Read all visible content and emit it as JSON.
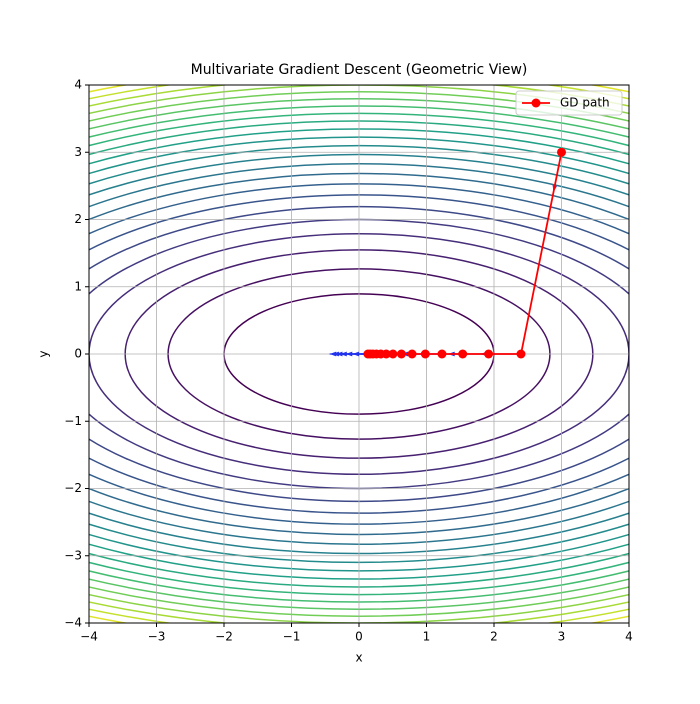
{
  "chart_data": {
    "type": "contour-path",
    "title": "Multivariate Gradient Descent (Geometric View)",
    "x_label": "x",
    "y_label": "y",
    "xlim": [
      -4,
      4
    ],
    "ylim": [
      -4,
      4
    ],
    "xticks": [
      {
        "value": -4,
        "label": "−4"
      },
      {
        "value": -3,
        "label": "−3"
      },
      {
        "value": -2,
        "label": "−2"
      },
      {
        "value": -1,
        "label": "−1"
      },
      0,
      1,
      2,
      3,
      4
    ],
    "yticks": [
      {
        "value": -4,
        "label": "−4"
      },
      {
        "value": -3,
        "label": "−3"
      },
      {
        "value": -2,
        "label": "−2"
      },
      {
        "value": -1,
        "label": "−1"
      },
      0,
      1,
      2,
      3,
      4
    ],
    "grid": true,
    "legend": "upper right",
    "levels": [
      4,
      8,
      12,
      16,
      20,
      24,
      28,
      32,
      36,
      40,
      44,
      48,
      52,
      56,
      60,
      64,
      68,
      72,
      76,
      80,
      84,
      88,
      92,
      96
    ],
    "series": [
      {
        "name": "GD path",
        "color": "#ff0000",
        "x": [
          3,
          2.4,
          1.92,
          1.536,
          1.229,
          0.983,
          0.786,
          0.629,
          0.503,
          0.403,
          0.322,
          0.258,
          0.206,
          0.165,
          0.132
        ],
        "values": [
          3,
          0,
          0,
          0,
          0,
          0,
          0,
          0,
          0,
          0,
          0,
          0,
          0,
          0,
          0
        ]
      }
    ]
  }
}
